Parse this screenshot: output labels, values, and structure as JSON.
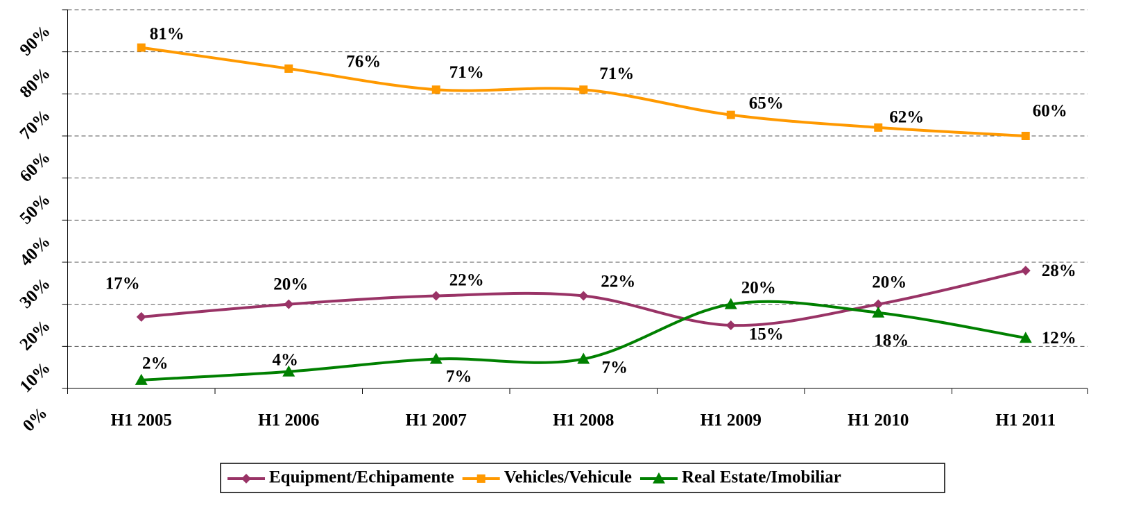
{
  "chart_data": {
    "type": "line",
    "categories": [
      "H1 2005",
      "H1 2006",
      "H1 2007",
      "H1 2008",
      "H1 2009",
      "H1 2010",
      "H1 2011"
    ],
    "series": [
      {
        "name": "Equipment/Echipamente",
        "color": "#993366",
        "marker": "diamond",
        "values": [
          17,
          20,
          22,
          22,
          15,
          20,
          28
        ],
        "value_labels": [
          "17%",
          "20%",
          "22%",
          "22%",
          "15%",
          "20%",
          "28%"
        ]
      },
      {
        "name": "Vehicles/Vehicule",
        "color": "#ff9900",
        "marker": "square",
        "values": [
          81,
          76,
          71,
          71,
          65,
          62,
          60
        ],
        "value_labels": [
          "81%",
          "76%",
          "71%",
          "71%",
          "65%",
          "62%",
          "60%"
        ]
      },
      {
        "name": "Real Estate/Imobiliar",
        "color": "#008000",
        "marker": "triangle",
        "values": [
          2,
          4,
          7,
          7,
          20,
          18,
          12
        ],
        "value_labels": [
          "2%",
          "4%",
          "7%",
          "7%",
          "20%",
          "18%",
          "12%"
        ]
      }
    ],
    "ylim": [
      0,
      90
    ],
    "yticks": [
      {
        "value": 0,
        "label": "0%"
      },
      {
        "value": 10,
        "label": "10%"
      },
      {
        "value": 20,
        "label": "20%"
      },
      {
        "value": 30,
        "label": "30%"
      },
      {
        "value": 40,
        "label": "40%"
      },
      {
        "value": 50,
        "label": "50%"
      },
      {
        "value": 60,
        "label": "60%"
      },
      {
        "value": 70,
        "label": "70%"
      },
      {
        "value": 80,
        "label": "80%"
      },
      {
        "value": 90,
        "label": "90%"
      }
    ],
    "grid": true,
    "legend": "bottom"
  }
}
